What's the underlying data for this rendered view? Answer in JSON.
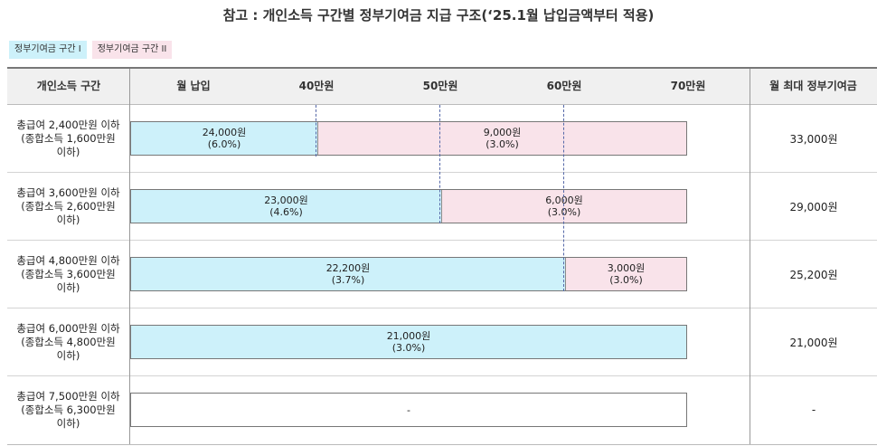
{
  "title": "참고 : 개인소득 구간별 정부기여금 지급 구조(‘25.1월 납입금액부터 적용)",
  "legend": {
    "section1": "정부기여금 구간 I",
    "section2": "정부기여금 구간 II"
  },
  "header": {
    "income_bracket": "개인소득 구간",
    "monthly_payment": "월 납입",
    "tick_40": "40만원",
    "tick_50": "50만원",
    "tick_60": "60만원",
    "tick_70": "70만원",
    "max_contribution": "월 최대 정부기여금"
  },
  "rows": [
    {
      "income_line1": "총급여 2,400만원 이하",
      "income_line2": "(종합소득 1,600만원",
      "income_line3": "이하)",
      "seg1_amount": "24,000원",
      "seg1_rate": "(6.0%)",
      "seg2_amount": "9,000원",
      "seg2_rate": "(3.0%)",
      "max": "33,000원"
    },
    {
      "income_line1": "총급여 3,600만원 이하",
      "income_line2": "(종합소득 2,600만원",
      "income_line3": "이하)",
      "seg1_amount": "23,000원",
      "seg1_rate": "(4.6%)",
      "seg2_amount": "6,000원",
      "seg2_rate": "(3.0%)",
      "max": "29,000원"
    },
    {
      "income_line1": "총급여 4,800만원 이하",
      "income_line2": "(종합소득 3,600만원",
      "income_line3": "이하)",
      "seg1_amount": "22,200원",
      "seg1_rate": "(3.7%)",
      "seg2_amount": "3,000원",
      "seg2_rate": "(3.0%)",
      "max": "25,200원"
    },
    {
      "income_line1": "총급여 6,000만원 이하",
      "income_line2": "(종합소득 4,800만원",
      "income_line3": "이하)",
      "seg1_amount": "21,000원",
      "seg1_rate": "(3.0%)",
      "max": "21,000원"
    },
    {
      "income_line1": "총급여 7,500만원 이하",
      "income_line2": "(종합소득 6,300만원",
      "income_line3": "이하)",
      "bar_text": "-",
      "max": "-"
    }
  ],
  "colors": {
    "section1": "#cdf1fa",
    "section2": "#f9e3ea",
    "header_bg": "#f0f0f0",
    "threshold_dash": "#5568a8"
  }
}
